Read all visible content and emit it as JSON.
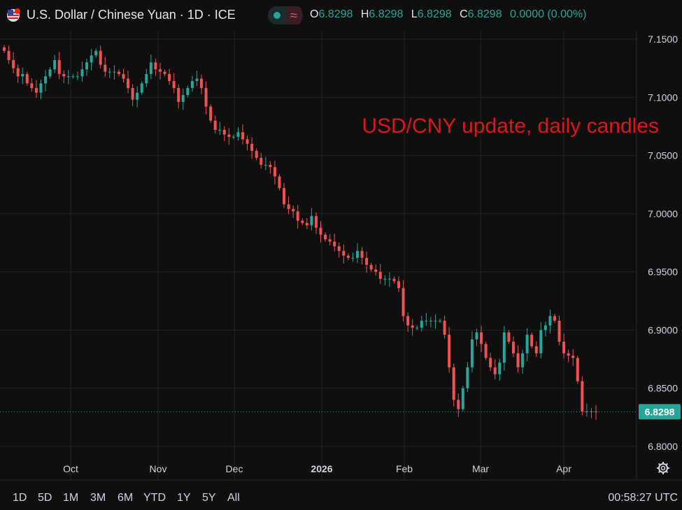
{
  "header": {
    "title": "U.S. Dollar / Chinese Yuan · 1D · ICE",
    "approx_symbol": "≈",
    "ohlc": [
      {
        "key": "O",
        "value": "6.8298"
      },
      {
        "key": "H",
        "value": "6.8298"
      },
      {
        "key": "L",
        "value": "6.8298"
      },
      {
        "key": "C",
        "value": "6.8298"
      },
      {
        "key": "",
        "value": "0.0000 (0.00%)"
      }
    ]
  },
  "annotation": {
    "text": "USD/CNY update, daily candles",
    "color": "#e0161a"
  },
  "colors": {
    "up": "#26a69a",
    "down": "#ef5350",
    "background": "#0f0f0f",
    "grid": "#232323"
  },
  "icons": [
    "us-flag-icon",
    "cn-flag-icon",
    "status-dot-icon",
    "settings-gear-icon"
  ],
  "footer": {
    "timeframes": [
      "1D",
      "5D",
      "1M",
      "3M",
      "6M",
      "YTD",
      "1Y",
      "5Y",
      "All"
    ],
    "clock": "00:58:27 UTC"
  },
  "chart_data": {
    "type": "candlestick",
    "title": "U.S. Dollar / Chinese Yuan · 1D · ICE",
    "y_ticks": [
      "7.1500",
      "7.1000",
      "7.0500",
      "7.0000",
      "6.9500",
      "6.9000",
      "6.8500",
      "6.8000"
    ],
    "ylim": [
      6.785,
      7.17
    ],
    "x_labels": [
      "Oct",
      "Nov",
      "Dec",
      "2026",
      "Feb",
      "Mar",
      "Apr"
    ],
    "current_price": "6.8298",
    "grid": true,
    "close_estimates": [
      7.14,
      7.132,
      7.125,
      7.118,
      7.12,
      7.112,
      7.108,
      7.104,
      7.112,
      7.118,
      7.124,
      7.132,
      7.12,
      7.118,
      7.118,
      7.118,
      7.118,
      7.124,
      7.13,
      7.136,
      7.14,
      7.128,
      7.122,
      7.122,
      7.122,
      7.12,
      7.116,
      7.108,
      7.098,
      7.104,
      7.112,
      7.12,
      7.13,
      7.124,
      7.122,
      7.12,
      7.114,
      7.108,
      7.096,
      7.102,
      7.108,
      7.114,
      7.116,
      7.108,
      7.092,
      7.08,
      7.072,
      7.072,
      7.068,
      7.066,
      7.066,
      7.07,
      7.064,
      7.06,
      7.054,
      7.048,
      7.042,
      7.042,
      7.04,
      7.032,
      7.022,
      7.008,
      7.004,
      7.002,
      6.994,
      6.992,
      6.99,
      6.998,
      6.988,
      6.982,
      6.978,
      6.976,
      6.972,
      6.968,
      6.964,
      6.962,
      6.962,
      6.968,
      6.962,
      6.956,
      6.952,
      6.95,
      6.944,
      6.944,
      6.944,
      6.942,
      6.936,
      6.912,
      6.904,
      6.902,
      6.902,
      6.908,
      6.908,
      6.908,
      6.908,
      6.908,
      6.896,
      6.868,
      6.84,
      6.832,
      6.85,
      6.868,
      6.892,
      6.898,
      6.888,
      6.876,
      6.868,
      6.862,
      6.872,
      6.898,
      6.89,
      6.88,
      6.868,
      6.88,
      6.896,
      6.886,
      6.88,
      6.9,
      6.904,
      6.912,
      6.908,
      6.89,
      6.88,
      6.878,
      6.876,
      6.856,
      6.83,
      6.83,
      6.83,
      6.8298
    ]
  }
}
